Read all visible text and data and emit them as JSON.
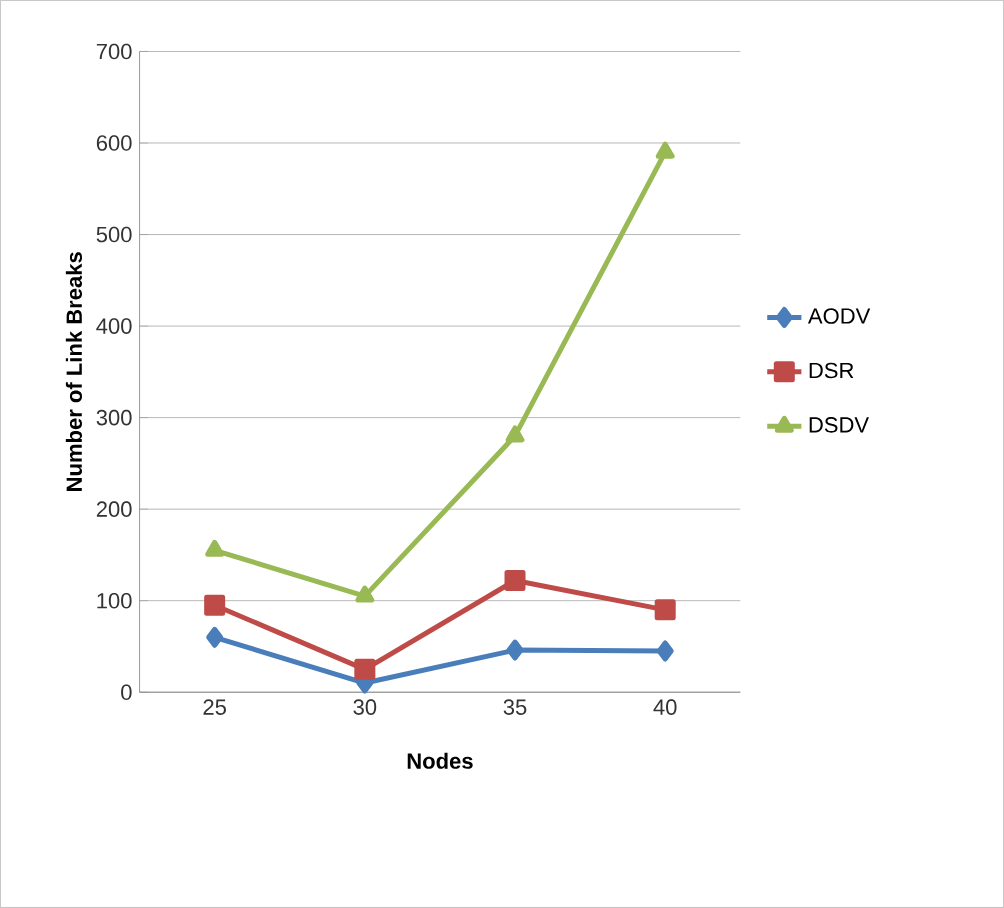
{
  "chart_data": {
    "type": "line",
    "xlabel": "Nodes",
    "ylabel": "Number of Link Breaks",
    "categories": [
      "25",
      "30",
      "35",
      "40"
    ],
    "series": [
      {
        "name": "AODV",
        "color": "#4a7ebb",
        "marker": "diamond",
        "values": [
          60,
          10,
          46,
          45
        ]
      },
      {
        "name": "DSR",
        "color": "#be4b48",
        "marker": "square",
        "values": [
          95,
          25,
          122,
          90
        ]
      },
      {
        "name": "DSDV",
        "color": "#98b954",
        "marker": "triangle",
        "values": [
          155,
          105,
          280,
          590
        ]
      }
    ],
    "ylim": [
      0,
      700
    ],
    "yticks": [
      0,
      100,
      200,
      300,
      400,
      500,
      600,
      700
    ],
    "grid": "y",
    "legend": "right"
  }
}
